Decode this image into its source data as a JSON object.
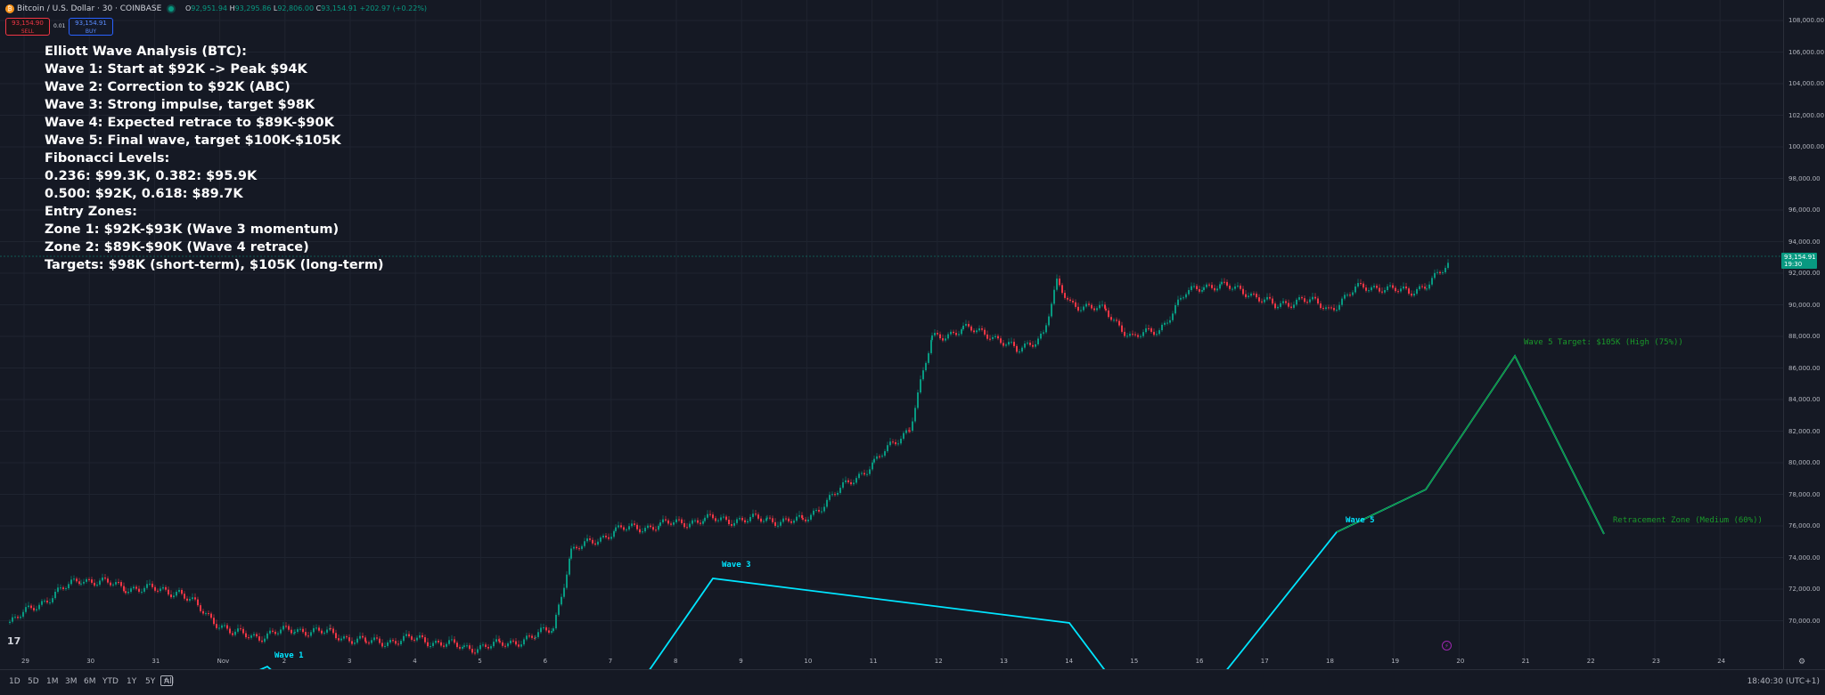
{
  "header": {
    "symbol": "Bitcoin / U.S. Dollar · 30 · COINBASE",
    "ohlc": {
      "o_label": "O",
      "o": "92,951.94",
      "h_label": "H",
      "h": "93,295.86",
      "l_label": "L",
      "l": "92,806.00",
      "c_label": "C",
      "c": "93,154.91",
      "change": "+202.97 (+0.22%)"
    },
    "sell": {
      "price": "93,154.90",
      "label": "SELL"
    },
    "buy": {
      "price": "93,154.91",
      "label": "BUY"
    },
    "spread": "0.01"
  },
  "analysis_lines": [
    "Elliott Wave Analysis (BTC):",
    "Wave 1: Start at $92K -> Peak $94K",
    "Wave 2: Correction to $92K (ABC)",
    "Wave 3: Strong impulse, target $98K",
    "Wave 4: Expected retrace to $89K-$90K",
    "Wave 5: Final wave, target $100K-$105K",
    "Fibonacci Levels:",
    "0.236: $99.3K, 0.382: $95.9K",
    "0.500: $92K, 0.618: $89.7K",
    "Entry Zones:",
    "Zone 1: $92K-$93K (Wave 3 momentum)",
    "Zone 2: $89K-$90K (Wave 4 retrace)",
    "Targets: $98K (short-term), $105K (long-term)"
  ],
  "wave_labels": {
    "w1": "Wave 1",
    "w3": "Wave 3",
    "w5": "Wave 5"
  },
  "projection_labels": {
    "target": "Wave 5 Target: $105K (High (75%))",
    "retrace": "Retracement Zone (Medium (60%))"
  },
  "price_axis": {
    "ticks": [
      "108,000.00",
      "106,000.00",
      "104,000.00",
      "102,000.00",
      "100,000.00",
      "98,000.00",
      "96,000.00",
      "94,000.00",
      "92,000.00",
      "90,000.00",
      "88,000.00",
      "86,000.00",
      "84,000.00",
      "82,000.00",
      "80,000.00",
      "78,000.00",
      "76,000.00",
      "74,000.00",
      "72,000.00",
      "70,000.00"
    ],
    "current_price": "93,154.91",
    "countdown": "19:30"
  },
  "time_axis": {
    "ticks": [
      "29",
      "30",
      "31",
      "Nov",
      "2",
      "3",
      "4",
      "5",
      "6",
      "7",
      "8",
      "9",
      "10",
      "11",
      "12",
      "13",
      "14",
      "15",
      "16",
      "17",
      "18",
      "19",
      "20",
      "21",
      "22",
      "23",
      "24"
    ]
  },
  "bottom_bar": {
    "timeframes": [
      "1D",
      "5D",
      "1M",
      "3M",
      "6M",
      "YTD",
      "1Y",
      "5Y",
      "All"
    ],
    "clock": "18:40:30 (UTC+1)"
  },
  "colors": {
    "background": "#151924",
    "up": "#089981",
    "down": "#f23645",
    "wave": "#00e5ff",
    "projection": "#1a9a2a"
  },
  "icons": {
    "bitcoin": "bitcoin-icon",
    "compare": "compare-icon",
    "settings": "gear-icon",
    "logo": "tradingview-logo",
    "marker": "event-marker-icon"
  }
}
